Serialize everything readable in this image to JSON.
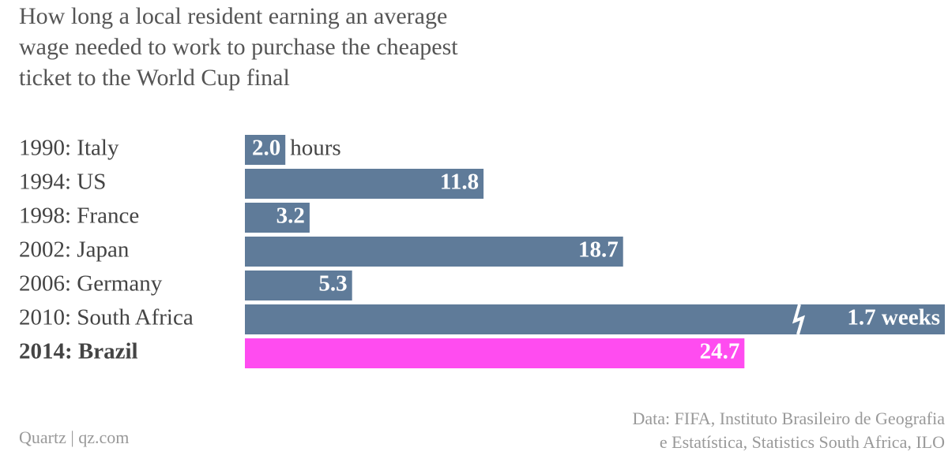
{
  "chart_data": {
    "type": "hbar",
    "title": [
      "How long a local resident earning an average",
      "wage needed to work to purchase the cheapest",
      "ticket to the World Cup final"
    ],
    "categories": [
      "1990: Italy",
      "1994: US",
      "1998: France",
      "2002: Japan",
      "2006: Germany",
      "2010: South Africa",
      "2014: Brazil"
    ],
    "values": [
      2.0,
      11.8,
      3.2,
      18.7,
      5.3,
      1.7,
      24.7
    ],
    "value_labels": [
      "2.0",
      "11.8",
      "3.2",
      "18.7",
      "5.3",
      "1.7 weeks",
      "24.7"
    ],
    "unit_label": "hours",
    "broken": [
      5
    ],
    "highlight": 6,
    "color": "#5f7b99",
    "highlight_color": "#ff4cf0",
    "source": [
      "Data: FIFA, Instituto Brasileiro de Geografia",
      "e Estatística, Statistics South Africa, ILO"
    ],
    "credit": "Quartz | qz.com"
  }
}
